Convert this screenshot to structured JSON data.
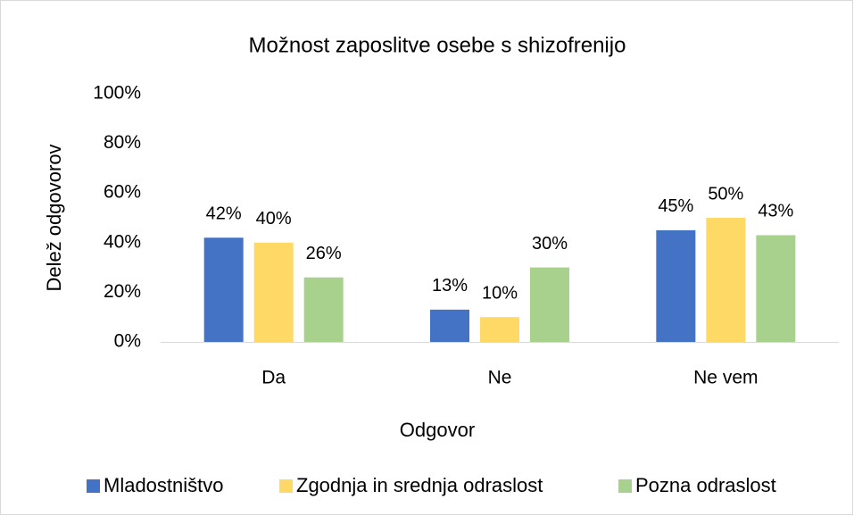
{
  "chart_data": {
    "type": "bar",
    "title": "Možnost zaposlitve osebe s shizofrenijo",
    "x_label": "Odgovor",
    "y_label": "Delež odgovorov",
    "categories": [
      "Da",
      "Ne",
      "Ne vem"
    ],
    "series": [
      {
        "name": "Mladostništvo",
        "color": "#4472c4",
        "values": [
          42,
          13,
          45
        ],
        "value_labels": [
          "42%",
          "13%",
          "45%"
        ]
      },
      {
        "name": "Zgodnja in srednja odraslost",
        "color": "#ffd966",
        "values": [
          40,
          10,
          50
        ],
        "value_labels": [
          "40%",
          "10%",
          "50%"
        ]
      },
      {
        "name": "Pozna odraslost",
        "color": "#a9d18e",
        "values": [
          26,
          30,
          43
        ],
        "value_labels": [
          "26%",
          "30%",
          "43%"
        ]
      }
    ],
    "ylim": [
      0,
      100
    ],
    "yticks": [
      {
        "value": 0,
        "label": "0%"
      },
      {
        "value": 20,
        "label": "20%"
      },
      {
        "value": 40,
        "label": "40%"
      },
      {
        "value": 60,
        "label": "60%"
      },
      {
        "value": 80,
        "label": "80%"
      },
      {
        "value": 100,
        "label": "100%"
      }
    ],
    "grid": false,
    "legend": "bottom"
  }
}
